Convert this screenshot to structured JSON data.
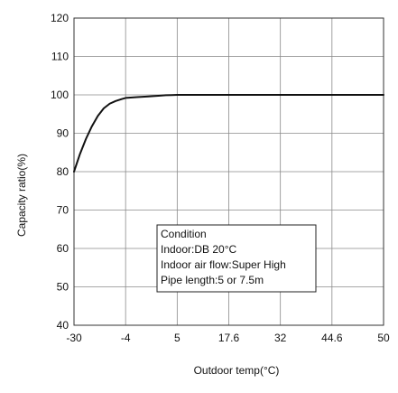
{
  "chart_data": {
    "type": "line",
    "title": "",
    "xlabel": "Outdoor temp(°C)",
    "ylabel": "Capacity ratio(%)",
    "x_ticks": [
      -30,
      -4,
      5,
      17.6,
      32,
      44.6,
      50
    ],
    "y_ticks": [
      40,
      50,
      60,
      70,
      80,
      90,
      100,
      110,
      120
    ],
    "xlim": [
      -30,
      50
    ],
    "ylim": [
      40,
      120
    ],
    "grid": true,
    "series": [
      {
        "x": [
          -30,
          -27,
          -24,
          -21,
          -18,
          -15,
          -12,
          -9,
          -6,
          -4,
          -2,
          0,
          2,
          3,
          4,
          5,
          17.6,
          32,
          44.6,
          50
        ],
        "y": [
          80,
          84.6,
          88.5,
          91.8,
          94.5,
          96.5,
          97.7,
          98.4,
          98.9,
          99.2,
          99.4,
          99.6,
          99.8,
          99.9,
          99.95,
          100,
          100,
          100,
          100,
          100
        ]
      }
    ],
    "annotation": {
      "lines": [
        "Condition",
        "Indoor:DB 20°C",
        "Indoor air flow:Super High",
        "Pipe length:5 or 7.5m"
      ]
    },
    "colors": {
      "line": "#111111",
      "grid": "#8a8a8a",
      "axis": "#333333"
    }
  }
}
